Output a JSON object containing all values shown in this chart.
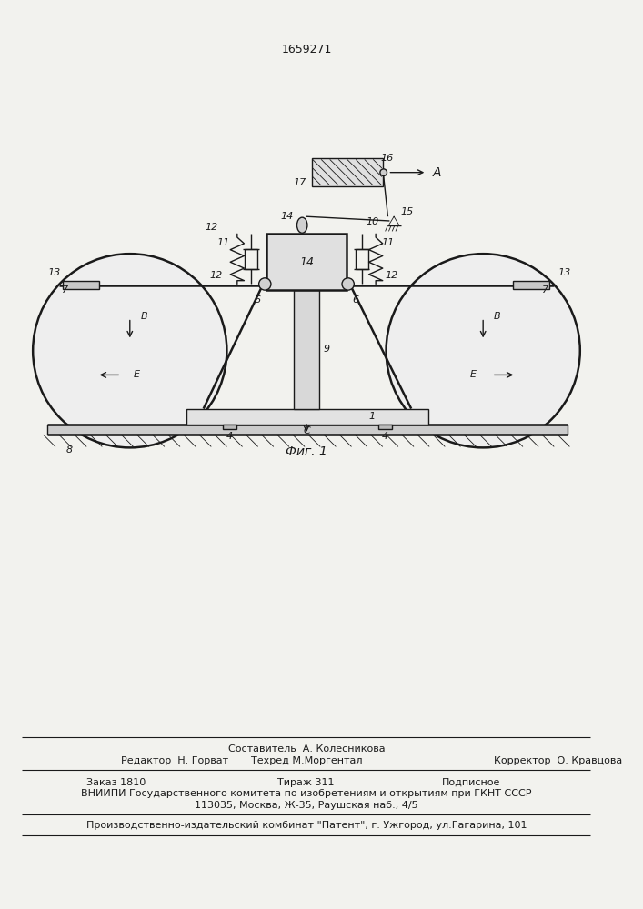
{
  "patent_number": "1659271",
  "fig_label": "Фиг. 1",
  "background_color": "#f2f2ee",
  "line_color": "#1a1a1a",
  "footer_line1a": "Составитель  А. Колесникова",
  "footer_editor": "Редактор  Н. Горват",
  "footer_tehred": "Техред М.Моргентал",
  "footer_korrektor": "Корректор  О. Кравцова",
  "footer_zakaz": "Заказ 1810",
  "footer_tirazh": "Тираж 311",
  "footer_podpisnoe": "Подписное",
  "footer_vniipи": "ВНИИПИ Государственного комитета по изобретениям и открытиям при ГКНТ СССР",
  "footer_address": "113035, Москва, Ж-35, Раушская наб., 4/5",
  "footer_production": "Производственно-издательский комбинат \"Патент\", г. Ужгород, ул.Гагарина, 101"
}
